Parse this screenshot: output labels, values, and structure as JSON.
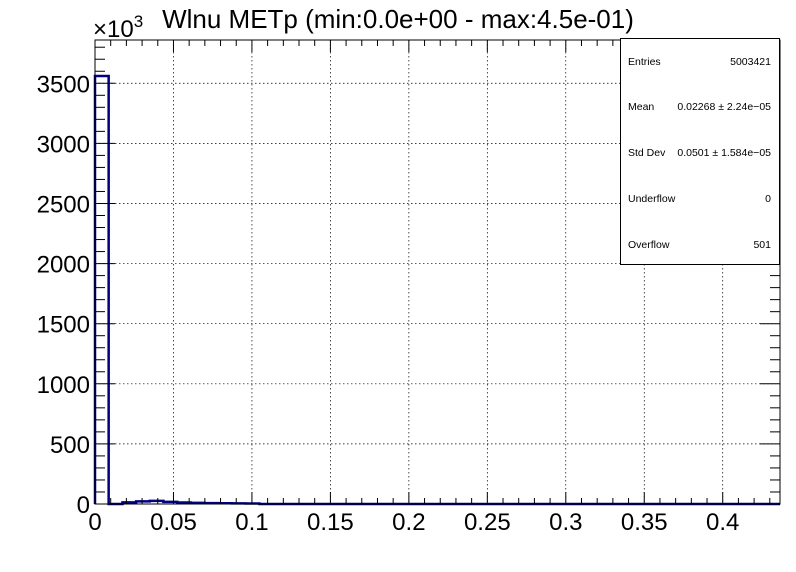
{
  "title": "Wlnu METp (min:0.0e+00 - max:4.5e-01)",
  "y_multiplier": "×10",
  "y_multiplier_exp": "3",
  "stats": {
    "entries_label": "Entries",
    "entries_value": "5003421",
    "mean_label": "Mean",
    "mean_value": "0.02268 ± 2.24e−05",
    "stddev_label": "Std Dev",
    "stddev_value": "0.0501 ± 1.584e−05",
    "underflow_label": "Underflow",
    "underflow_value": "0",
    "overflow_label": "Overflow",
    "overflow_value": "501"
  },
  "chart_data": {
    "type": "bar",
    "xlim": [
      0,
      0.4365
    ],
    "ylim": [
      0,
      3860
    ],
    "y_units": "×10^3 entries",
    "x_ticks": [
      0,
      0.05,
      0.1,
      0.15,
      0.2,
      0.25,
      0.3,
      0.35,
      0.4
    ],
    "x_tick_labels": [
      "0",
      "0.05",
      "0.1",
      "0.15",
      "0.2",
      "0.25",
      "0.3",
      "0.35",
      "0.4"
    ],
    "y_ticks": [
      0,
      500,
      1000,
      1500,
      2000,
      2500,
      3000,
      3500
    ],
    "y_tick_labels": [
      "0",
      "500",
      "1000",
      "1500",
      "2000",
      "2500",
      "3000",
      "3500"
    ],
    "grid": true,
    "legend": "top-right stats box",
    "line_color": "#000080",
    "bins": [
      {
        "x0": 0.0,
        "x1": 0.0087,
        "y": 3560
      },
      {
        "x0": 0.0087,
        "x1": 0.0175,
        "y": 0
      },
      {
        "x0": 0.0175,
        "x1": 0.0262,
        "y": 14
      },
      {
        "x0": 0.0262,
        "x1": 0.0349,
        "y": 22
      },
      {
        "x0": 0.0349,
        "x1": 0.0436,
        "y": 26
      },
      {
        "x0": 0.0436,
        "x1": 0.0524,
        "y": 18
      },
      {
        "x0": 0.0524,
        "x1": 0.0611,
        "y": 12
      },
      {
        "x0": 0.0611,
        "x1": 0.0698,
        "y": 9
      },
      {
        "x0": 0.0698,
        "x1": 0.0786,
        "y": 7
      },
      {
        "x0": 0.0786,
        "x1": 0.0873,
        "y": 6
      },
      {
        "x0": 0.0873,
        "x1": 0.096,
        "y": 5
      },
      {
        "x0": 0.096,
        "x1": 0.1048,
        "y": 4
      },
      {
        "x0": 0.1048,
        "x1": 0.4365,
        "y": 0
      }
    ]
  }
}
